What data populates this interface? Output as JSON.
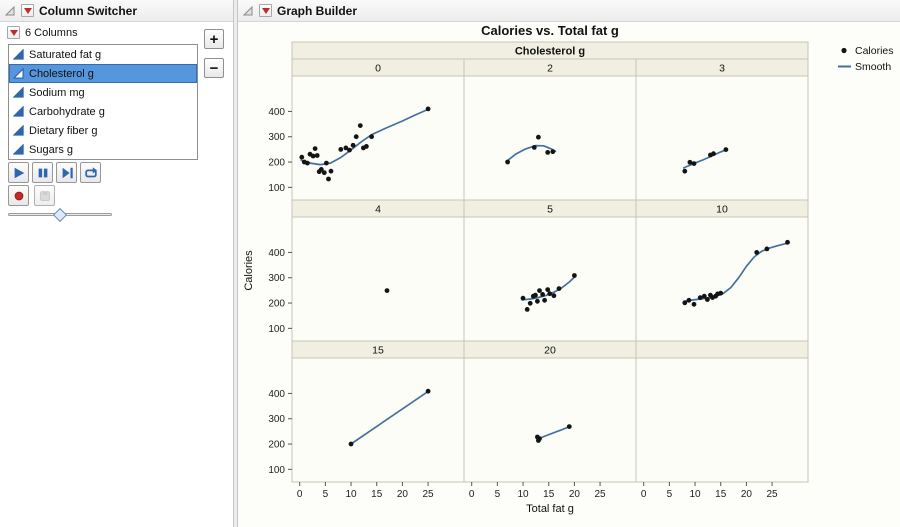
{
  "left_panel": {
    "title": "Column Switcher",
    "columns_label": "6 Columns",
    "add_label": "+",
    "remove_label": "−",
    "items": [
      {
        "label": "Saturated fat g",
        "selected": false
      },
      {
        "label": "Cholesterol g",
        "selected": true
      },
      {
        "label": "Sodium mg",
        "selected": false
      },
      {
        "label": "Carbohydrate g",
        "selected": false
      },
      {
        "label": "Dietary fiber g",
        "selected": false
      },
      {
        "label": "Sugars g",
        "selected": false
      }
    ],
    "controls": {
      "icons": [
        "play-icon",
        "pause-icon",
        "step-forward-icon",
        "loop-icon",
        "record-icon",
        "save-icon"
      ],
      "slider_position": 0.5
    }
  },
  "right_panel": {
    "title": "Graph Builder"
  },
  "chart_data": {
    "type": "scatter",
    "title": "Calories vs. Total fat g",
    "xlabel": "Total fat g",
    "ylabel": "Calories",
    "facet_var": "Cholesterol g",
    "xlim": [
      -1.5,
      32
    ],
    "ylim": [
      50,
      540
    ],
    "xticks": [
      0,
      5,
      10,
      15,
      20,
      25
    ],
    "yticks": [
      100,
      200,
      300,
      400
    ],
    "legend": [
      {
        "label": "Calories",
        "type": "point"
      },
      {
        "label": "Smooth",
        "type": "line"
      }
    ],
    "facets": [
      {
        "level": "0",
        "points": [
          [
            0.4,
            219
          ],
          [
            0.9,
            200
          ],
          [
            1.5,
            196
          ],
          [
            2,
            231
          ],
          [
            2.6,
            224
          ],
          [
            3,
            253
          ],
          [
            3.4,
            226
          ],
          [
            3.8,
            162
          ],
          [
            4.2,
            171
          ],
          [
            4.8,
            158
          ],
          [
            5.2,
            196
          ],
          [
            5.6,
            133
          ],
          [
            6.1,
            164
          ],
          [
            8,
            250
          ],
          [
            9,
            256
          ],
          [
            9.7,
            247
          ],
          [
            10.4,
            266
          ],
          [
            11,
            300
          ],
          [
            11.8,
            344
          ],
          [
            12.4,
            256
          ],
          [
            13,
            262
          ],
          [
            14,
            300
          ],
          [
            25,
            410
          ]
        ],
        "smooth": [
          [
            0.3,
            207
          ],
          [
            2,
            196
          ],
          [
            4,
            190
          ],
          [
            6,
            196
          ],
          [
            8,
            218
          ],
          [
            10,
            248
          ],
          [
            12,
            280
          ],
          [
            14,
            308
          ],
          [
            17,
            336
          ],
          [
            20,
            362
          ],
          [
            22.5,
            386
          ],
          [
            25,
            408
          ]
        ]
      },
      {
        "level": "2",
        "points": [
          [
            7,
            200
          ],
          [
            12.2,
            258
          ],
          [
            13,
            298
          ],
          [
            14.8,
            238
          ],
          [
            15.8,
            241
          ]
        ],
        "smooth": [
          [
            6.8,
            203
          ],
          [
            8.5,
            230
          ],
          [
            10.5,
            252
          ],
          [
            12.5,
            265
          ],
          [
            14,
            264
          ],
          [
            15.5,
            252
          ],
          [
            16.3,
            243
          ]
        ]
      },
      {
        "level": "3",
        "points": [
          [
            8,
            164
          ],
          [
            9,
            199
          ],
          [
            9.8,
            194
          ],
          [
            13,
            228
          ],
          [
            13.6,
            233
          ],
          [
            16,
            249
          ]
        ],
        "smooth": [
          [
            7.8,
            177
          ],
          [
            9.5,
            192
          ],
          [
            11.5,
            208
          ],
          [
            13.5,
            226
          ],
          [
            15,
            240
          ],
          [
            16.2,
            250
          ]
        ]
      },
      {
        "level": "4",
        "points": [
          [
            17,
            249
          ]
        ],
        "smooth": []
      },
      {
        "level": "5",
        "points": [
          [
            10,
            219
          ],
          [
            10.8,
            175
          ],
          [
            11.4,
            199
          ],
          [
            12,
            227
          ],
          [
            12.4,
            231
          ],
          [
            12.8,
            207
          ],
          [
            13.2,
            249
          ],
          [
            13.8,
            234
          ],
          [
            14.2,
            211
          ],
          [
            14.8,
            253
          ],
          [
            15.2,
            237
          ],
          [
            16,
            229
          ],
          [
            17,
            257
          ],
          [
            20,
            309
          ]
        ],
        "smooth": [
          [
            9.8,
            213
          ],
          [
            11.5,
            216
          ],
          [
            13,
            222
          ],
          [
            14.5,
            230
          ],
          [
            16,
            243
          ],
          [
            17.5,
            260
          ],
          [
            19,
            283
          ],
          [
            20.2,
            306
          ]
        ]
      },
      {
        "level": "10",
        "points": [
          [
            8,
            201
          ],
          [
            8.8,
            211
          ],
          [
            9.8,
            195
          ],
          [
            11,
            221
          ],
          [
            11.8,
            227
          ],
          [
            12.4,
            214
          ],
          [
            13,
            231
          ],
          [
            13.4,
            222
          ],
          [
            14,
            227
          ],
          [
            14.4,
            236
          ],
          [
            15,
            239
          ],
          [
            22,
            400
          ],
          [
            24,
            414
          ],
          [
            28,
            440
          ]
        ],
        "smooth": [
          [
            7.8,
            207
          ],
          [
            9.5,
            212
          ],
          [
            11,
            216
          ],
          [
            12.5,
            220
          ],
          [
            14,
            226
          ],
          [
            15.5,
            238
          ],
          [
            17,
            262
          ],
          [
            18.5,
            300
          ],
          [
            20,
            345
          ],
          [
            21.5,
            382
          ],
          [
            23,
            405
          ],
          [
            24.5,
            417
          ],
          [
            26,
            426
          ],
          [
            27.5,
            434
          ],
          [
            28.3,
            438
          ]
        ]
      },
      {
        "level": "15",
        "points": [
          [
            10,
            200
          ],
          [
            25,
            409
          ]
        ],
        "smooth": [
          [
            10,
            200
          ],
          [
            25,
            408
          ]
        ]
      },
      {
        "level": "20",
        "points": [
          [
            12.8,
            228
          ],
          [
            13,
            214
          ],
          [
            13.2,
            221
          ],
          [
            19,
            269
          ]
        ],
        "smooth": [
          [
            12.8,
            220
          ],
          [
            19,
            268
          ]
        ]
      },
      {
        "level": "",
        "points": [],
        "smooth": []
      }
    ]
  },
  "colors": {
    "red_triangle": "#b7312c",
    "icon_blue": "#2f66ad",
    "smooth_line": "#44709f",
    "point": "#141414",
    "band_fill": "#f0efe2",
    "cell_fill": "#fdfdf7",
    "grid_border": "#c6c5b6",
    "selection_bg": "#5596dc",
    "selection_border": "#2f6db5"
  }
}
